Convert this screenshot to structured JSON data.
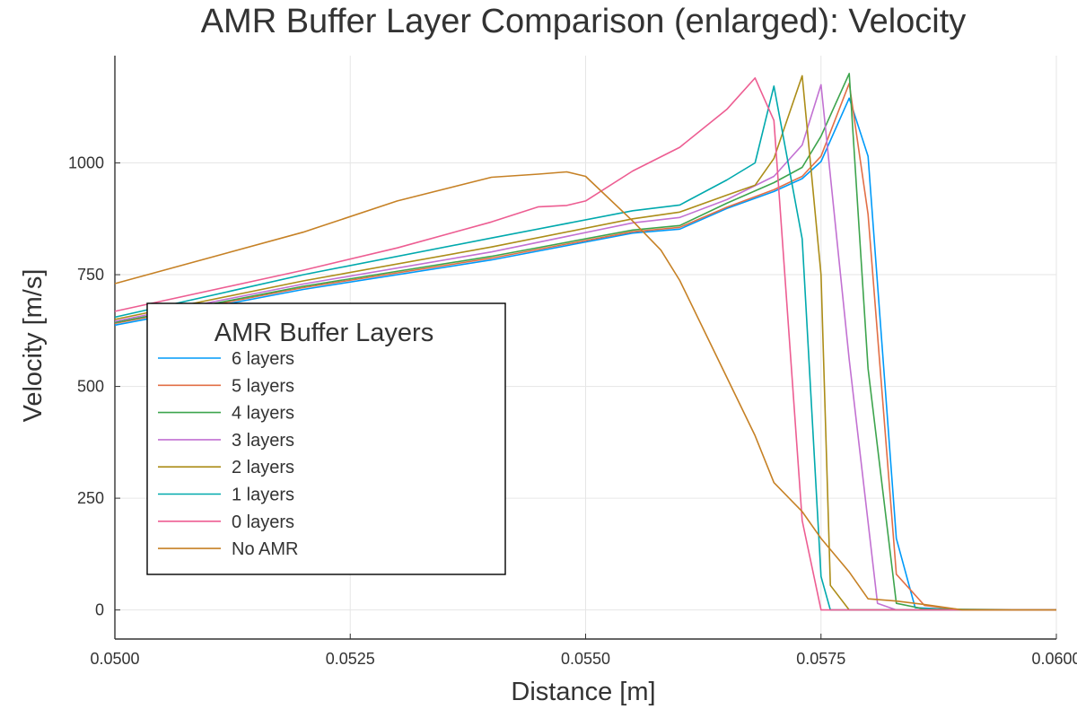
{
  "chart_data": {
    "type": "line",
    "title": "AMR Buffer Layer Comparison (enlarged): Velocity",
    "xlabel": "Distance [m]",
    "ylabel": "Velocity [m/s]",
    "xlim": [
      0.05,
      0.06
    ],
    "ylim": [
      -65,
      1240
    ],
    "grid": true,
    "legend": {
      "title": "AMR Buffer Layers",
      "placement": "left"
    },
    "x_ticks": [
      {
        "value": 0.05,
        "label": "0.0500"
      },
      {
        "value": 0.0525,
        "label": "0.0525"
      },
      {
        "value": 0.055,
        "label": "0.0550"
      },
      {
        "value": 0.0575,
        "label": "0.0575"
      },
      {
        "value": 0.06,
        "label": "0.0600"
      }
    ],
    "y_ticks": [
      {
        "value": 0,
        "label": "0"
      },
      {
        "value": 250,
        "label": "250"
      },
      {
        "value": 500,
        "label": "500"
      },
      {
        "value": 750,
        "label": "750"
      },
      {
        "value": 1000,
        "label": "1000"
      }
    ],
    "series": [
      {
        "name": "6 layers",
        "color": "#009af9",
        "x": [
          0.05,
          0.052,
          0.054,
          0.0555,
          0.056,
          0.0565,
          0.057,
          0.0573,
          0.0575,
          0.0578,
          0.058,
          0.0583,
          0.0585,
          0.059,
          0.06
        ],
        "y": [
          637,
          717,
          783,
          843,
          852,
          898,
          936,
          965,
          1003,
          1145,
          1015,
          160,
          5,
          0,
          0
        ]
      },
      {
        "name": "5 layers",
        "color": "#e26f46",
        "x": [
          0.05,
          0.052,
          0.054,
          0.0555,
          0.056,
          0.0565,
          0.057,
          0.0573,
          0.0575,
          0.0578,
          0.058,
          0.0583,
          0.0586,
          0.059,
          0.06
        ],
        "y": [
          641,
          721,
          787,
          846,
          856,
          901,
          940,
          970,
          1015,
          1178,
          885,
          80,
          10,
          0,
          0
        ]
      },
      {
        "name": "4 layers",
        "color": "#3da44d",
        "x": [
          0.05,
          0.052,
          0.054,
          0.0555,
          0.056,
          0.0565,
          0.057,
          0.0573,
          0.0575,
          0.0578,
          0.058,
          0.0583,
          0.0586,
          0.06
        ],
        "y": [
          643,
          724,
          791,
          850,
          860,
          910,
          956,
          990,
          1060,
          1200,
          540,
          15,
          2,
          0
        ]
      },
      {
        "name": "3 layers",
        "color": "#c271d2",
        "x": [
          0.05,
          0.052,
          0.054,
          0.0555,
          0.056,
          0.0565,
          0.057,
          0.0573,
          0.0575,
          0.0578,
          0.0581,
          0.0583,
          0.06
        ],
        "y": [
          646,
          729,
          801,
          866,
          878,
          918,
          970,
          1040,
          1175,
          560,
          15,
          0,
          0
        ]
      },
      {
        "name": "2 layers",
        "color": "#ac8d18",
        "x": [
          0.05,
          0.052,
          0.054,
          0.0555,
          0.056,
          0.0565,
          0.0568,
          0.057,
          0.0573,
          0.0575,
          0.0576,
          0.0578,
          0.06
        ],
        "y": [
          650,
          736,
          812,
          875,
          890,
          928,
          950,
          1010,
          1195,
          750,
          55,
          0,
          0
        ]
      },
      {
        "name": "1 layers",
        "color": "#00a9ad",
        "x": [
          0.05,
          0.052,
          0.054,
          0.0555,
          0.056,
          0.0565,
          0.0568,
          0.057,
          0.0573,
          0.0575,
          0.0576,
          0.06
        ],
        "y": [
          655,
          750,
          832,
          893,
          906,
          962,
          1000,
          1172,
          830,
          75,
          0,
          0
        ]
      },
      {
        "name": "0 layers",
        "color": "#ed5d92",
        "x": [
          0.05,
          0.052,
          0.053,
          0.054,
          0.0545,
          0.0548,
          0.055,
          0.0555,
          0.056,
          0.0565,
          0.0568,
          0.057,
          0.0573,
          0.0575,
          0.0578,
          0.06
        ],
        "y": [
          668,
          760,
          810,
          868,
          902,
          905,
          915,
          982,
          1035,
          1120,
          1190,
          1095,
          200,
          0,
          0,
          0
        ]
      },
      {
        "name": "No AMR",
        "color": "#c68125",
        "x": [
          0.05,
          0.052,
          0.053,
          0.054,
          0.0545,
          0.0548,
          0.055,
          0.0555,
          0.0558,
          0.056,
          0.0565,
          0.0568,
          0.057,
          0.0573,
          0.0575,
          0.0578,
          0.058,
          0.0583,
          0.0586,
          0.059,
          0.06
        ],
        "y": [
          730,
          845,
          915,
          968,
          975,
          980,
          970,
          870,
          805,
          737,
          520,
          390,
          285,
          220,
          160,
          85,
          25,
          20,
          12,
          0,
          0
        ]
      }
    ]
  }
}
